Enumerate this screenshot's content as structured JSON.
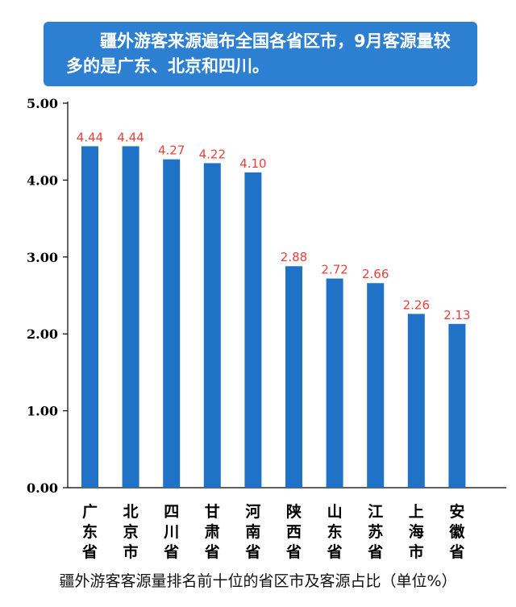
{
  "banner": {
    "text": "疆外游客来源遍布全国各省区市，9月客源量较多的是广东、北京和四川。"
  },
  "caption": "疆外游客客源量排名前十位的省区市及客源占比（单位%）",
  "colors": {
    "bar": "#1f72c6",
    "value_label": "#e8403c",
    "banner": "#2d7fd1"
  },
  "chart_data": {
    "type": "bar",
    "title": "",
    "xlabel": "",
    "ylabel": "",
    "categories": [
      "广东省",
      "北京市",
      "四川省",
      "甘肃省",
      "河南省",
      "陕西省",
      "山东省",
      "江苏省",
      "上海市",
      "安徽省"
    ],
    "values": [
      4.44,
      4.44,
      4.27,
      4.22,
      4.1,
      2.88,
      2.72,
      2.66,
      2.26,
      2.13
    ],
    "value_labels": [
      "4.44",
      "4.44",
      "4.27",
      "4.22",
      "4.10",
      "2.88",
      "2.72",
      "2.66",
      "2.26",
      "2.13"
    ],
    "ylim": [
      0,
      5
    ],
    "yticks": [
      "0.00",
      "1.00",
      "2.00",
      "3.00",
      "4.00",
      "5.00"
    ],
    "grid": false,
    "legend": "none"
  }
}
